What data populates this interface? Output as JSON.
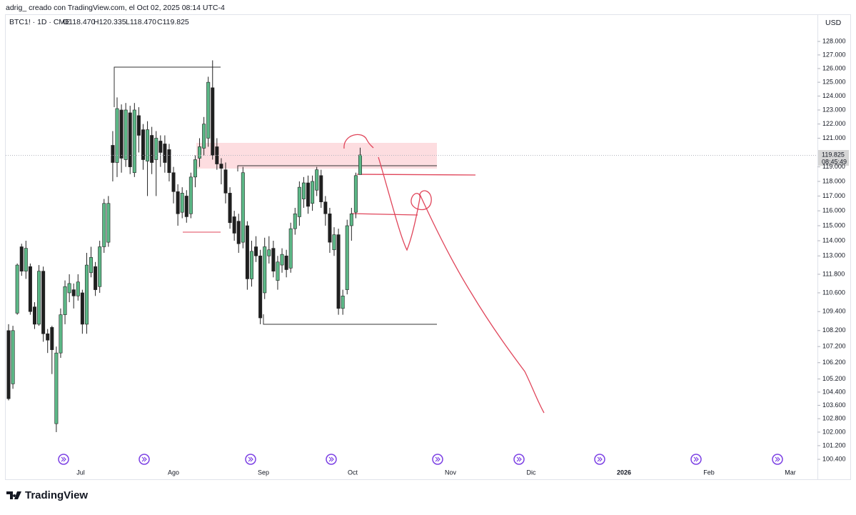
{
  "header": {
    "credit": "adrig_ creado con TradingView.com, el Oct 02, 2025 08:14 UTC-4",
    "symbol": "BTC1! · 1D · CME",
    "ohlc": [
      "O118.470",
      "H120.335",
      "L118.470",
      "C119.825"
    ],
    "currency": "USD",
    "last_price": "119.825",
    "countdown": "08:45:49",
    "brand": "TradingView"
  },
  "chart_data": {
    "type": "candlestick",
    "log_scale": true,
    "up_color": "#5cb887",
    "down_color": "#1f1f1f",
    "x_labels": [
      "Jul",
      "Ago",
      "Sep",
      "Oct",
      "Nov",
      "Dic",
      "2026",
      "Feb",
      "Mar"
    ],
    "open": [
      108.2,
      104.9,
      109.3,
      113.6,
      112.0,
      112.3,
      109.7,
      108.6,
      112.0,
      108.0,
      108.4,
      102.5,
      106.8,
      109.2,
      110.6,
      110.8,
      110.4,
      110.6,
      108.6,
      111.9,
      112.3,
      111.0,
      113.6,
      113.9,
      120.5,
      119.3,
      123.0,
      119.5,
      122.8,
      118.6,
      122.6,
      121.6,
      119.4,
      121.2,
      119.5,
      120.8,
      120.6,
      120.2,
      118.6,
      117.3,
      115.9,
      117.0,
      115.8,
      118.3,
      119.6,
      120.3,
      121.0,
      124.6,
      120.4,
      119.2,
      118.8,
      117.2,
      115.6,
      115.3,
      113.9,
      115.0,
      111.5,
      113.6,
      113.0,
      110.6,
      113.0,
      113.5,
      111.4,
      112.4,
      113.0,
      112.2,
      114.8,
      115.6,
      116.8,
      117.9,
      116.5,
      117.4,
      118.4,
      116.6,
      115.8,
      113.4,
      114.4,
      109.6,
      110.8,
      115.0,
      115.9,
      118.47
    ],
    "high": [
      108.6,
      108.5,
      112.5,
      113.8,
      114.0,
      112.5,
      110.0,
      112.4,
      112.3,
      108.3,
      108.5,
      107.2,
      109.6,
      111.4,
      111.8,
      111.2,
      111.8,
      110.8,
      113.2,
      113.6,
      112.6,
      114.0,
      116.8,
      117.0,
      121.5,
      123.9,
      123.4,
      123.5,
      123.3,
      123.5,
      123.2,
      122.0,
      122.2,
      121.8,
      121.5,
      121.2,
      121.2,
      120.6,
      119.0,
      117.8,
      117.6,
      117.4,
      118.6,
      119.8,
      121.0,
      122.5,
      125.4,
      126.6,
      121.0,
      119.6,
      119.3,
      117.6,
      116.0,
      115.8,
      119.0,
      115.3,
      114.0,
      114.3,
      113.4,
      114.2,
      114.3,
      114.0,
      113.0,
      113.5,
      113.4,
      115.2,
      116.2,
      118.0,
      118.3,
      118.4,
      118.4,
      119.0,
      118.8,
      117.0,
      116.2,
      114.9,
      114.8,
      110.8,
      115.4,
      116.2,
      118.6,
      120.335
    ],
    "low": [
      103.9,
      104.6,
      109.2,
      111.7,
      111.5,
      109.2,
      108.3,
      108.5,
      107.5,
      106.8,
      105.5,
      102.0,
      106.5,
      108.6,
      110.0,
      109.6,
      110.1,
      108.0,
      108.0,
      111.6,
      110.4,
      110.6,
      113.2,
      113.6,
      118.0,
      118.3,
      118.6,
      119.0,
      118.5,
      118.3,
      120.0,
      118.8,
      117.0,
      118.5,
      117.0,
      119.0,
      118.6,
      118.0,
      116.5,
      115.0,
      115.5,
      115.2,
      115.5,
      117.6,
      119.0,
      119.8,
      120.4,
      119.5,
      118.8,
      117.8,
      116.5,
      114.8,
      114.0,
      113.2,
      113.5,
      110.8,
      111.0,
      112.6,
      108.6,
      110.2,
      112.5,
      111.6,
      110.8,
      111.9,
      111.6,
      111.9,
      114.4,
      115.0,
      116.2,
      115.8,
      116.0,
      117.0,
      116.2,
      115.0,
      113.2,
      113.0,
      109.2,
      109.2,
      110.5,
      114.0,
      115.5,
      118.47
    ],
    "close": [
      104.0,
      108.2,
      112.4,
      112.0,
      113.5,
      109.4,
      108.6,
      112.0,
      108.0,
      107.6,
      107.0,
      106.8,
      109.2,
      111.0,
      111.2,
      110.4,
      111.3,
      108.6,
      112.4,
      112.9,
      110.8,
      113.6,
      116.5,
      116.5,
      119.3,
      123.1,
      119.6,
      123.0,
      119.0,
      123.0,
      121.2,
      119.5,
      121.6,
      119.3,
      121.0,
      120.0,
      119.3,
      118.6,
      117.3,
      115.8,
      117.2,
      115.6,
      118.3,
      119.5,
      120.4,
      122.0,
      125.0,
      119.8,
      119.2,
      118.9,
      117.2,
      115.2,
      114.5,
      113.8,
      118.6,
      111.5,
      113.3,
      113.0,
      109.0,
      113.6,
      113.4,
      112.0,
      112.6,
      113.1,
      112.1,
      114.8,
      115.8,
      117.6,
      117.9,
      116.3,
      118.0,
      118.8,
      116.6,
      115.8,
      113.9,
      114.4,
      109.6,
      110.4,
      115.0,
      115.8,
      118.4,
      119.825
    ],
    "ylim": [
      99.2,
      128.96
    ],
    "yticks": [
      {
        "value": 128,
        "label": "128.000"
      },
      {
        "value": 127,
        "label": "127.000"
      },
      {
        "value": 126,
        "label": "126.000"
      },
      {
        "value": 125,
        "label": "125.000"
      },
      {
        "value": 124,
        "label": "124.000"
      },
      {
        "value": 123,
        "label": "123.000"
      },
      {
        "value": 122,
        "label": "122.000"
      },
      {
        "value": 121,
        "label": "121.000"
      },
      {
        "value": 119,
        "label": "119.000"
      },
      {
        "value": 118,
        "label": "118.000"
      },
      {
        "value": 117,
        "label": "117.000"
      },
      {
        "value": 116,
        "label": "116.000"
      },
      {
        "value": 115,
        "label": "115.000"
      },
      {
        "value": 114,
        "label": "114.000"
      },
      {
        "value": 113,
        "label": "113.000"
      },
      {
        "value": 111.8,
        "label": "111.800"
      },
      {
        "value": 110.6,
        "label": "110.600"
      },
      {
        "value": 109.4,
        "label": "109.400"
      },
      {
        "value": 108.2,
        "label": "108.200"
      },
      {
        "value": 107.2,
        "label": "107.200"
      },
      {
        "value": 106.2,
        "label": "106.200"
      },
      {
        "value": 105.2,
        "label": "105.200"
      },
      {
        "value": 104.4,
        "label": "104.400"
      },
      {
        "value": 103.6,
        "label": "103.600"
      },
      {
        "value": 102.8,
        "label": "102.800"
      },
      {
        "value": 102,
        "label": "102.000"
      },
      {
        "value": 101.2,
        "label": "101.200"
      },
      {
        "value": 100.4,
        "label": "100.400"
      }
    ]
  }
}
